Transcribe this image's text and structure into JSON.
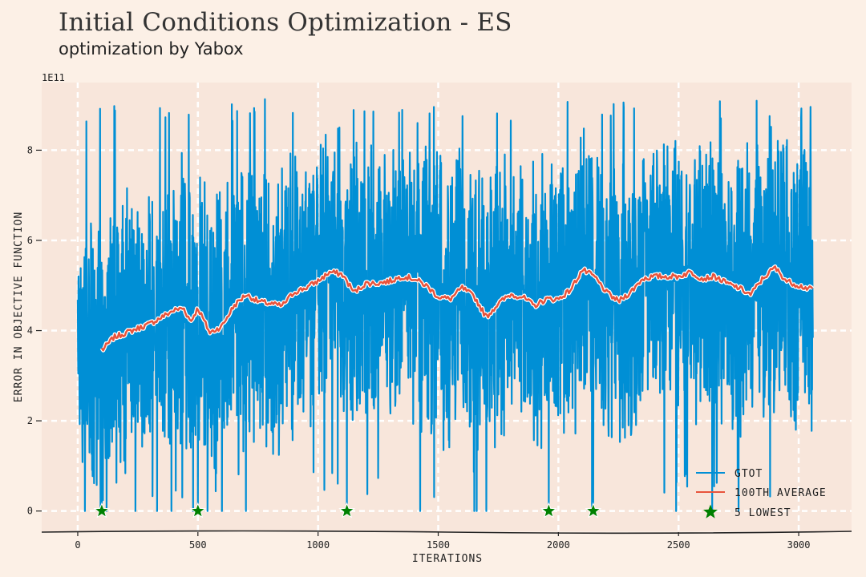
{
  "title": "Initial Conditions Optimization - ES",
  "subtitle": "optimization by Yabox",
  "chart_data": {
    "type": "line",
    "xlabel": "ITERATIONS",
    "ylabel": "ERROR IN OBJECTIVE FUNCTION",
    "y_exponent_label": "1E11",
    "xlim": [
      -150,
      3220
    ],
    "ylim": [
      -0.45,
      9.5
    ],
    "x_ticks": [
      0,
      500,
      1000,
      1500,
      2000,
      2500,
      3000
    ],
    "y_ticks": [
      0,
      2,
      4,
      6,
      8
    ],
    "x_tick_labels": [
      "0",
      "500",
      "1000",
      "1500",
      "2000",
      "2500",
      "3000"
    ],
    "y_tick_labels": [
      "0",
      "2",
      "4",
      "6",
      "8"
    ],
    "grid": true,
    "legend_position": "lower-right",
    "n_iterations": 3060,
    "series": [
      {
        "name": "GTOT",
        "color": "#008fd5",
        "style": "noisy line",
        "summary": {
          "min": 0.0,
          "max": 9.2,
          "typical_low": 1.5,
          "typical_high": 8.0,
          "spikes_to_zero_at": [
            30,
            95,
            120,
            240,
            330,
            390,
            480,
            500,
            540,
            600,
            700,
            1120,
            1425,
            1650,
            1660,
            1700,
            1960,
            2140,
            2490,
            2640,
            2750
          ]
        }
      },
      {
        "name": "100TH AVERAGE",
        "color": "#e8543c",
        "x": [
          100,
          150,
          200,
          250,
          300,
          350,
          400,
          440,
          470,
          500,
          550,
          600,
          650,
          700,
          750,
          800,
          850,
          900,
          950,
          1000,
          1050,
          1100,
          1150,
          1200,
          1250,
          1300,
          1350,
          1400,
          1450,
          1500,
          1550,
          1600,
          1650,
          1700,
          1750,
          1800,
          1850,
          1900,
          1950,
          2000,
          2050,
          2100,
          2150,
          2200,
          2250,
          2300,
          2350,
          2400,
          2450,
          2500,
          2550,
          2600,
          2650,
          2700,
          2750,
          2800,
          2850,
          2900,
          2950,
          3000,
          3060
        ],
        "y": [
          3.55,
          3.85,
          3.95,
          4.05,
          4.15,
          4.3,
          4.45,
          4.5,
          4.2,
          4.5,
          3.95,
          4.1,
          4.55,
          4.8,
          4.65,
          4.6,
          4.55,
          4.85,
          4.95,
          5.1,
          5.3,
          5.25,
          4.85,
          5.05,
          5.05,
          5.1,
          5.2,
          5.15,
          5.0,
          4.75,
          4.7,
          4.95,
          4.75,
          4.3,
          4.6,
          4.8,
          4.75,
          4.55,
          4.7,
          4.7,
          4.9,
          5.35,
          5.2,
          4.85,
          4.65,
          4.85,
          5.15,
          5.2,
          5.2,
          5.2,
          5.3,
          5.15,
          5.2,
          5.05,
          4.95,
          4.8,
          5.15,
          5.4,
          5.1,
          5.0,
          4.9
        ]
      },
      {
        "name": "5 LOWEST",
        "color": "#008000",
        "marker": "star",
        "x": [
          100,
          500,
          1120,
          1960,
          2145
        ],
        "y": [
          0,
          0,
          0,
          0,
          0
        ]
      }
    ]
  }
}
